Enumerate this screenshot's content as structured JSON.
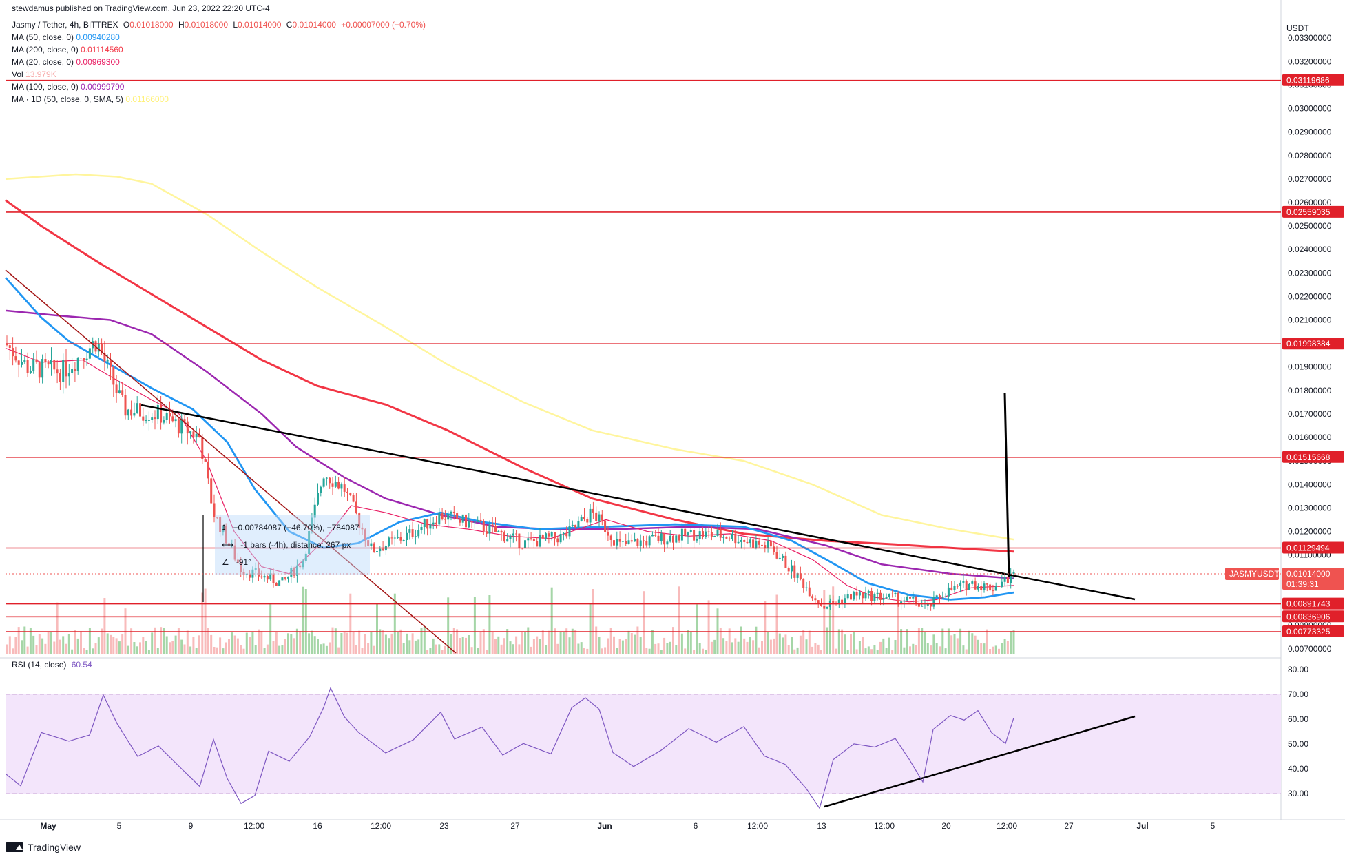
{
  "header": {
    "publisher": "stewdamus published on TradingView.com, Jun 23, 2022 22:20 UTC-4"
  },
  "legend": {
    "symbol_title": "Jasmy / Tether, 4h, BITTREX",
    "ohlc": {
      "o_label": "O",
      "o": "0.01018000",
      "h_label": "H",
      "h": "0.01018000",
      "l_label": "L",
      "l": "0.01014000",
      "c_label": "C",
      "c": "0.01014000",
      "change": "+0.00007000 (+0.70%)"
    },
    "ma50": {
      "label": "MA (50, close, 0)",
      "value": "0.00940280",
      "color": "#2196f3"
    },
    "ma200": {
      "label": "MA (200, close, 0)",
      "value": "0.01114560",
      "color": "#f23645"
    },
    "ma20": {
      "label": "MA (20, close, 0)",
      "value": "0.00969300",
      "color": "#e91e63"
    },
    "vol": {
      "label": "Vol",
      "value": "13.979K",
      "color": "#f7a5a5"
    },
    "ma100": {
      "label": "MA (100, close, 0)",
      "value": "0.00999790",
      "color": "#9c27b0"
    },
    "ma1d": {
      "label": "MA · 1D (50, close, 0, SMA, 5)",
      "value": "0.01166000",
      "color": "#fff59d"
    }
  },
  "price_axis": {
    "currency": "USDT",
    "ticks": [
      "0.03300000",
      "0.03200000",
      "0.03100000",
      "0.03000000",
      "0.02900000",
      "0.02800000",
      "0.02700000",
      "0.02600000",
      "0.02500000",
      "0.02400000",
      "0.02300000",
      "0.02200000",
      "0.02100000",
      "0.02000000",
      "0.01900000",
      "0.01800000",
      "0.01700000",
      "0.01600000",
      "0.01500000",
      "0.01400000",
      "0.01300000",
      "0.01200000",
      "0.01100000",
      "0.01000000",
      "0.00900000",
      "0.00800000",
      "0.00700000"
    ],
    "level_labels": [
      "0.03119686",
      "0.02559035",
      "0.01998384",
      "0.01515668",
      "0.01129494",
      "0.00891743",
      "0.00836906",
      "0.00773325"
    ],
    "symbol_tag": "JASMYUSDT",
    "last_price": "0.01014000",
    "countdown": "01:39:31"
  },
  "time_axis": {
    "labels": [
      "May",
      "5",
      "9",
      "12:00",
      "16",
      "12:00",
      "23",
      "27",
      "Jun",
      "6",
      "12:00",
      "13",
      "12:00",
      "20",
      "12:00",
      "27",
      "Jul",
      "5"
    ]
  },
  "measure_tool": {
    "price_range": "−0.00784087 (−46.70%), −784087",
    "bars": "-1 bars (-4h), distance: 267 px",
    "angle": "-91°"
  },
  "rsi": {
    "label": "RSI (14, close)",
    "value": "60.54",
    "axis_ticks": [
      "80.00",
      "70.00",
      "60.00",
      "50.00",
      "40.00",
      "30.00"
    ]
  },
  "footer": {
    "brand": "TradingView"
  },
  "colors": {
    "level_line": "#e0202a",
    "ma50": "#2196f3",
    "ma200": "#f23645",
    "ma20": "#e91e63",
    "ma100": "#9c27b0",
    "ma1d": "#fff59d",
    "up": "#26a69a",
    "down": "#ef5350",
    "rsi": "#7e57c2",
    "rsi_band": "#f3e5fb"
  },
  "chart_data": {
    "type": "candlestick",
    "symbol": "JASMYUSDT",
    "timeframe": "4h",
    "y_range": [
      0.0068,
      0.0335
    ],
    "x_range": [
      "2022-05-01",
      "2022-07-05"
    ],
    "horizontal_levels": [
      0.03119686,
      0.02559035,
      0.01998384,
      0.01515668,
      0.01129494,
      0.00891743,
      0.00836906,
      0.00773325
    ],
    "last_price": 0.01014,
    "ma_series": [
      {
        "name": "MA (50, close, 0)",
        "last": 0.0094028
      },
      {
        "name": "MA (200, close, 0)",
        "last": 0.0111456
      },
      {
        "name": "MA (20, close, 0)",
        "last": 0.009693
      },
      {
        "name": "MA (100, close, 0)",
        "last": 0.0099979
      },
      {
        "name": "MA · 1D (50, close, 0, SMA, 5)",
        "last": 0.01166
      }
    ],
    "trendlines": [
      {
        "from": [
          "2022-05-07",
          0.01732
        ],
        "to": [
          "2022-06-29",
          0.0091
        ]
      },
      {
        "from": [
          "2022-06-13",
          24.5
        ],
        "to": [
          "2022-06-29",
          60.8
        ],
        "pane": "rsi"
      }
    ],
    "rsi": {
      "range": [
        25,
        85
      ],
      "band": [
        30,
        70
      ],
      "last": 60.54
    }
  }
}
